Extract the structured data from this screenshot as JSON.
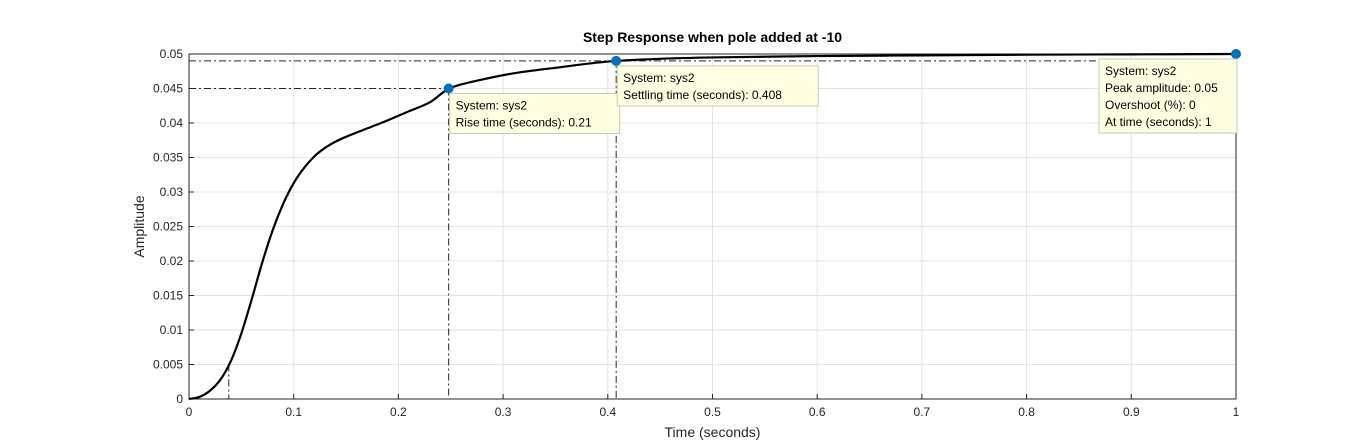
{
  "chart_data": {
    "type": "line",
    "title": "Step Response when pole added at -10",
    "xlabel": "Time (seconds)",
    "ylabel": "Amplitude",
    "xlim": [
      0,
      1
    ],
    "ylim": [
      0,
      0.05
    ],
    "xticks": [
      "0",
      "0.1",
      "0.2",
      "0.3",
      "0.4",
      "0.5",
      "0.6",
      "0.7",
      "0.8",
      "0.9",
      "1"
    ],
    "yticks": [
      "0",
      "0.005",
      "0.01",
      "0.015",
      "0.02",
      "0.025",
      "0.03",
      "0.035",
      "0.04",
      "0.045",
      "0.05"
    ],
    "grid": true,
    "series": [
      {
        "color": "#000000",
        "x": [
          0,
          0.01,
          0.02,
          0.03,
          0.04,
          0.05,
          0.06,
          0.07,
          0.08,
          0.09,
          0.1,
          0.11,
          0.12,
          0.13,
          0.14,
          0.15,
          0.17,
          0.19,
          0.21,
          0.23,
          0.25,
          0.28,
          0.31,
          0.35,
          0.4,
          0.45,
          0.5,
          0.6,
          0.7,
          0.8,
          0.9,
          1.0
        ],
        "y": [
          0,
          0.0003,
          0.0012,
          0.0028,
          0.0055,
          0.0095,
          0.0145,
          0.0198,
          0.0245,
          0.0283,
          0.0313,
          0.0335,
          0.0352,
          0.0364,
          0.0373,
          0.038,
          0.0392,
          0.0404,
          0.0417,
          0.043,
          0.0451,
          0.0463,
          0.0472,
          0.048,
          0.0489,
          0.0493,
          0.0495,
          0.0497,
          0.0498,
          0.0499,
          0.04995,
          0.05
        ]
      }
    ],
    "characteristics": {
      "rise_lower": {
        "x": 0.038,
        "y": 0.005
      },
      "rise_upper": {
        "x": 0.248,
        "y": 0.045
      },
      "settling_band_y": 0.049,
      "settling_time_x": 0.408,
      "peak": {
        "x": 1.0,
        "y": 0.05
      }
    },
    "marker_color": "#0072BD",
    "datatips": [
      {
        "x": 0.248,
        "y": 0.045,
        "lines": [
          "System: sys2",
          "Rise time (seconds): 0.21"
        ]
      },
      {
        "x": 0.408,
        "y": 0.049,
        "lines": [
          "System: sys2",
          "Settling time (seconds): 0.408"
        ]
      },
      {
        "x": 1.0,
        "y": 0.05,
        "lines": [
          "System: sys2",
          "Peak amplitude: 0.05",
          "Overshoot (%): 0",
          "At time (seconds): 1"
        ]
      }
    ]
  }
}
